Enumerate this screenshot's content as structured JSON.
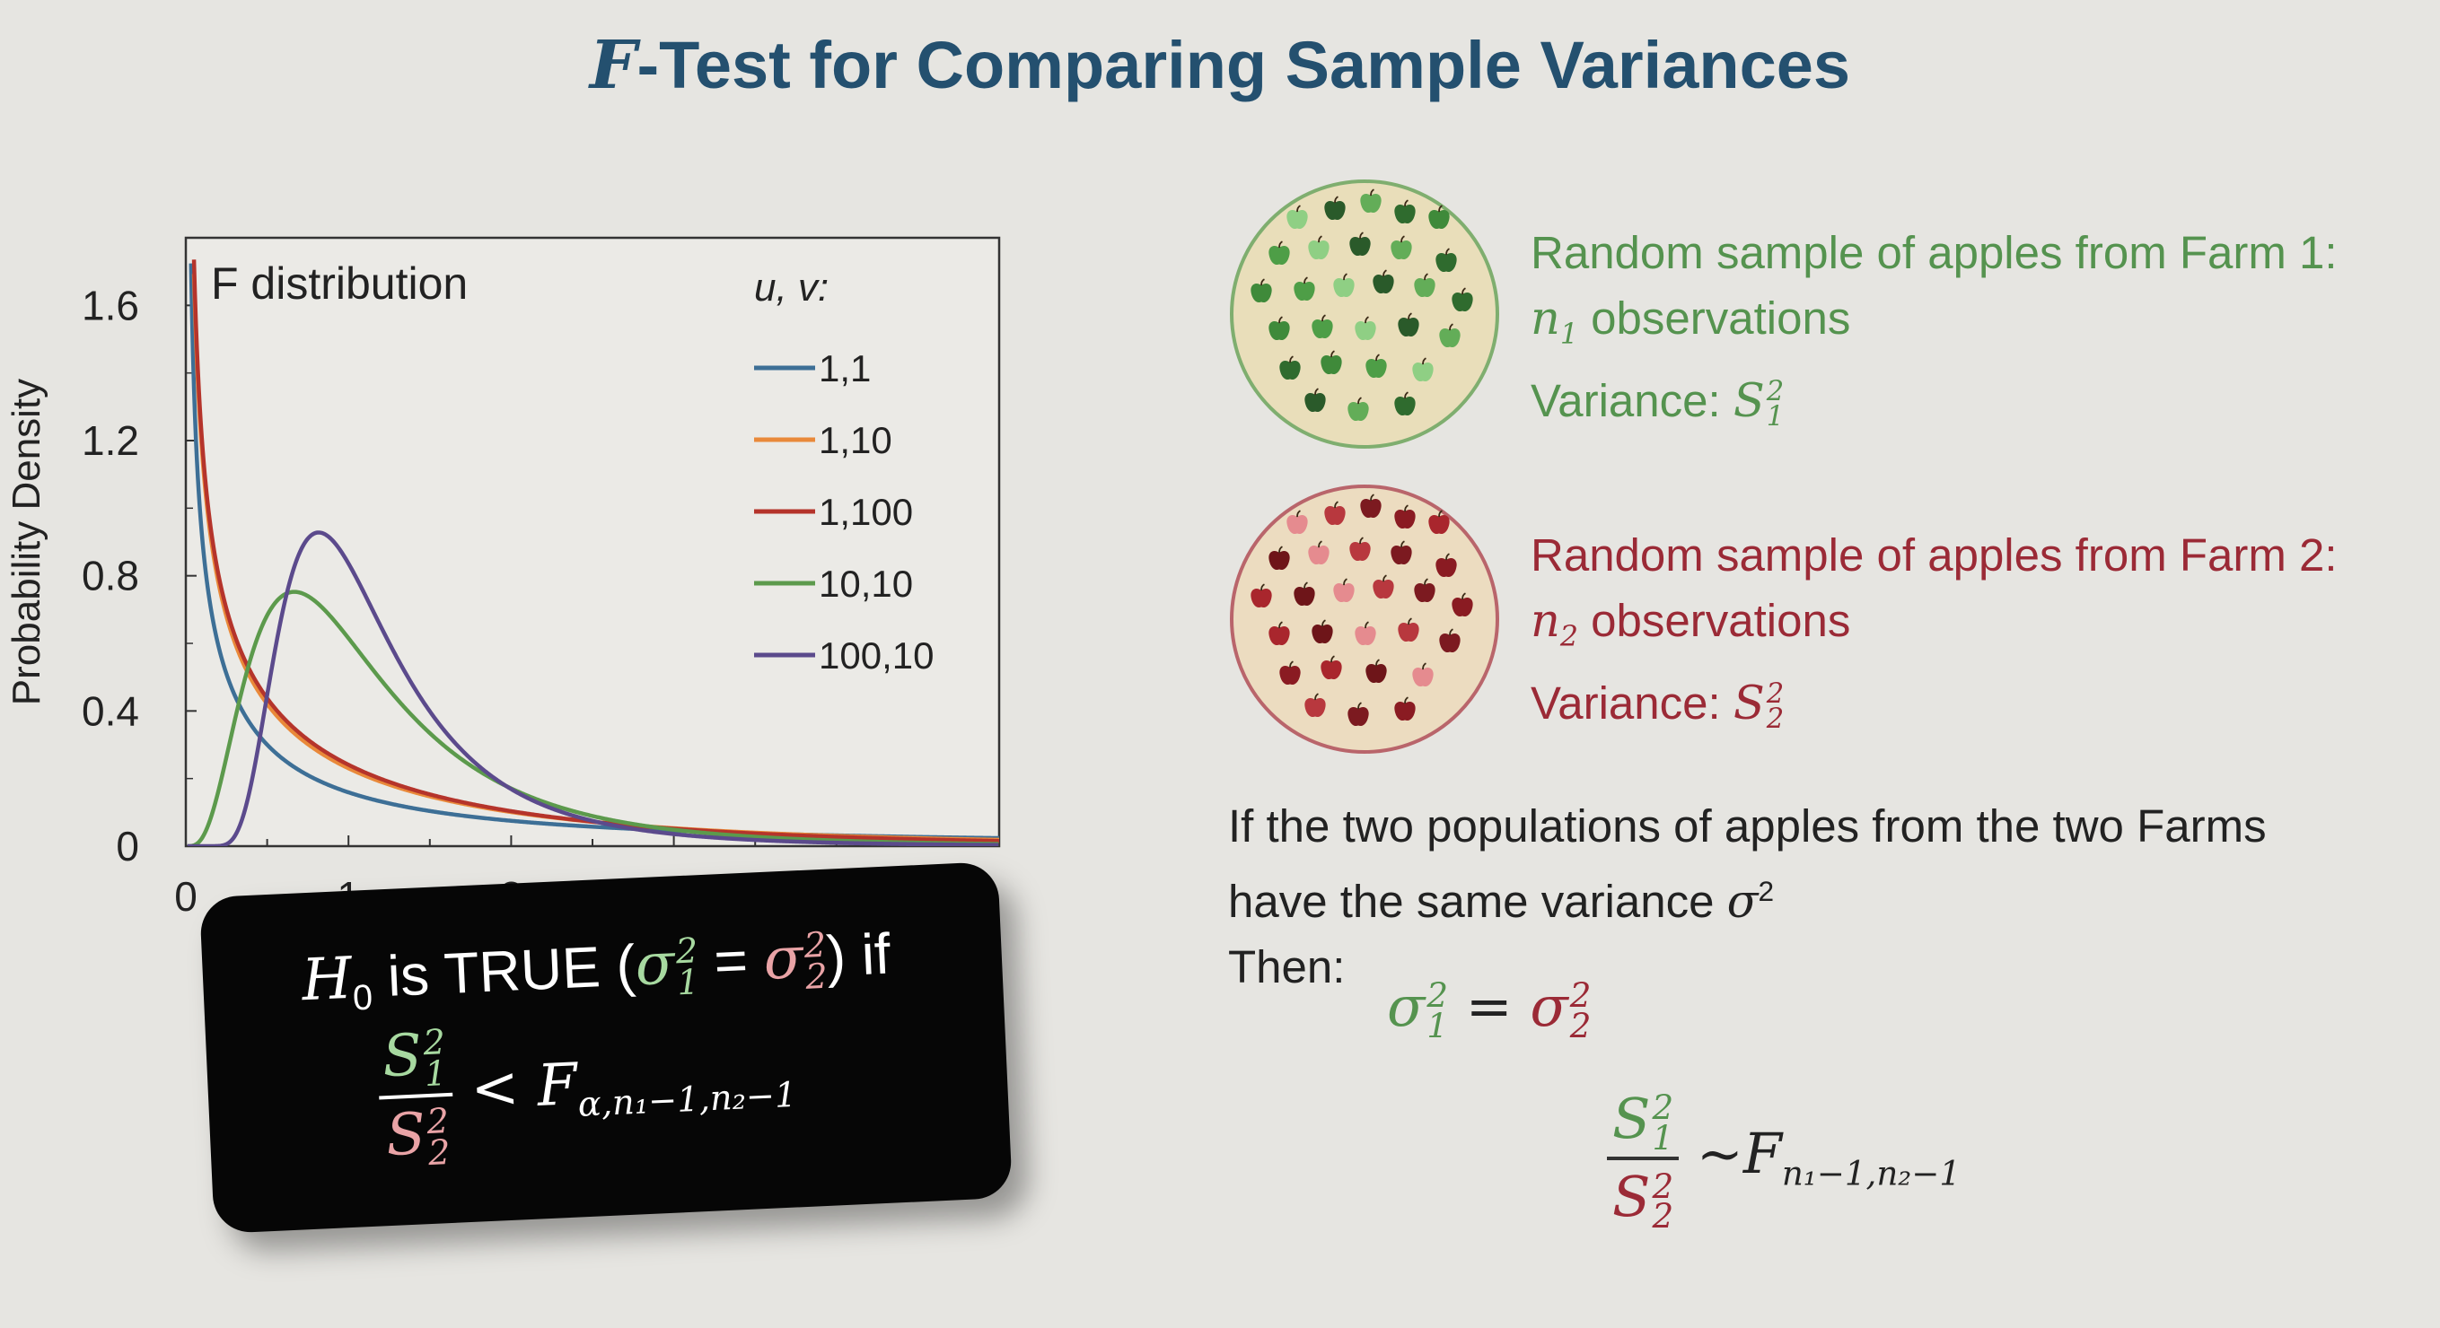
{
  "slide": {
    "title_prefix": "F",
    "title_rest": "-Test for Comparing Sample Variances"
  },
  "colors": {
    "title": "#24506f",
    "farm1": "#55934f",
    "farm2": "#9b2a36",
    "farm1_light": "#a7d9a0",
    "farm2_light": "#e9a3a6"
  },
  "samples": {
    "farm1": {
      "heading": "Random sample of apples from Farm 1:",
      "count_var": "n",
      "count_sub": "1",
      "count_text": "observations",
      "variance_label": "Variance:",
      "variance_sym": "S",
      "variance_sup": "2",
      "variance_sub": "1"
    },
    "farm2": {
      "heading": "Random sample of apples from Farm 2:",
      "count_var": "n",
      "count_sub": "2",
      "count_text": "observations",
      "variance_label": "Variance:",
      "variance_sym": "S",
      "variance_sup": "2",
      "variance_sub": "2"
    }
  },
  "explanation": {
    "line1": "If the two populations of apples from the two Farms",
    "line2": "have the same variance",
    "line2_sym": "σ",
    "line2_sup": "2",
    "line3": "Then:"
  },
  "equations": {
    "sigma": "σ",
    "equals": "=",
    "s": "S",
    "tilde_f": "~F",
    "dist_sub": "n",
    "dist_sub_full": "n₁−1,n₂−1"
  },
  "hypothesis": {
    "h": "H",
    "h_sub": "0",
    "is_true": "is TRUE (",
    "close_if": ") if",
    "less_f": "< F",
    "crit_sub": "α,n₁−1,n₂−1"
  },
  "chart_data": {
    "type": "line",
    "title": "F distribution",
    "xlabel": "",
    "ylabel": "Probability Density",
    "xlim": [
      0,
      5
    ],
    "ylim": [
      0,
      1.8
    ],
    "y_ticks": [
      0,
      0.4,
      0.8,
      1.2,
      1.6
    ],
    "y_tick_labels": [
      "0",
      "0.4",
      "0.8",
      "1.2",
      "1.6"
    ],
    "x_ticks_visible": [
      "0",
      "1",
      "2"
    ],
    "legend_title": "u, v:",
    "legend_position": "top-right",
    "grid": false,
    "series": [
      {
        "name": "1,1",
        "u": 1,
        "v": 1,
        "color": "#3d6f96"
      },
      {
        "name": "1,10",
        "u": 1,
        "v": 10,
        "color": "#e9893a"
      },
      {
        "name": "1,100",
        "u": 1,
        "v": 100,
        "color": "#b5342b"
      },
      {
        "name": "10,10",
        "u": 10,
        "v": 10,
        "color": "#5c9a4c"
      },
      {
        "name": "100,10",
        "u": 100,
        "v": 10,
        "color": "#5b4a8c"
      }
    ]
  }
}
